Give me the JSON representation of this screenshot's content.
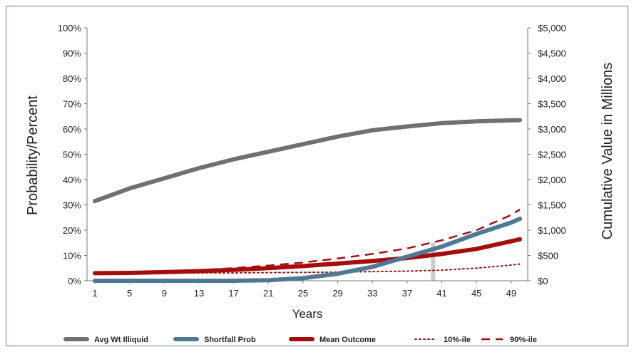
{
  "chart_data": {
    "type": "line",
    "xlabel": "Years",
    "ylabel_left": "Probability/Percent",
    "ylabel_right": "Cumulative Value in Millions",
    "x_ticks": [
      "1",
      "5",
      "9",
      "13",
      "17",
      "21",
      "25",
      "29",
      "33",
      "37",
      "41",
      "45",
      "49"
    ],
    "y_left_ticks": [
      "0%",
      "10%",
      "20%",
      "30%",
      "40%",
      "50%",
      "60%",
      "70%",
      "80%",
      "90%",
      "100%"
    ],
    "y_right_ticks": [
      "$0",
      "$500",
      "$1,000",
      "$1,500",
      "$2,000",
      "$2,500",
      "$3,000",
      "$3,500",
      "$4,000",
      "$4,500",
      "$5,000"
    ],
    "ylim_left": [
      0,
      100
    ],
    "ylim_right": [
      0,
      5000
    ],
    "xlim": [
      1,
      50
    ],
    "grid": false,
    "legend_position": "bottom",
    "series": [
      {
        "name": "Avg Wt Illiquid",
        "axis": "left",
        "color": "#707070",
        "style": "solid-thick",
        "x": [
          1,
          5,
          9,
          13,
          17,
          21,
          25,
          29,
          33,
          37,
          41,
          45,
          49,
          50
        ],
        "values": [
          31.5,
          36.5,
          40.5,
          44.5,
          48,
          51,
          54,
          57,
          59.5,
          61,
          62.3,
          63,
          63.4,
          63.5
        ]
      },
      {
        "name": "Shortfall Prob",
        "axis": "left",
        "color": "#4f7894",
        "style": "solid-thick",
        "x": [
          1,
          5,
          9,
          13,
          17,
          21,
          25,
          29,
          33,
          37,
          41,
          45,
          49,
          50
        ],
        "values": [
          0,
          0,
          0,
          0,
          0,
          0.2,
          1,
          2.8,
          5.5,
          9.5,
          13.5,
          18.5,
          23,
          24.5
        ]
      },
      {
        "name": "Mean Outcome",
        "axis": "right",
        "color": "#a50d0d",
        "style": "solid-thick",
        "x": [
          1,
          5,
          9,
          13,
          17,
          21,
          25,
          29,
          33,
          37,
          41,
          45,
          49,
          50
        ],
        "values": [
          150,
          155,
          170,
          190,
          215,
          250,
          290,
          340,
          390,
          450,
          530,
          630,
          780,
          820
        ]
      },
      {
        "name": "10%-ile",
        "axis": "right",
        "color": "#a50d0d",
        "style": "dotted",
        "x": [
          1,
          5,
          9,
          13,
          17,
          21,
          25,
          29,
          33,
          37,
          41,
          45,
          49,
          50
        ],
        "values": [
          150,
          150,
          150,
          155,
          155,
          160,
          165,
          170,
          180,
          190,
          210,
          250,
          310,
          330
        ]
      },
      {
        "name": "90%-ile",
        "axis": "right",
        "color": "#a50d0d",
        "style": "dashed",
        "x": [
          1,
          5,
          9,
          13,
          17,
          21,
          25,
          29,
          33,
          37,
          41,
          45,
          49,
          50
        ],
        "values": [
          150,
          160,
          180,
          210,
          250,
          300,
          360,
          440,
          530,
          640,
          800,
          1000,
          1300,
          1410
        ]
      }
    ],
    "marker_bar": {
      "x": 40,
      "color": "#cccccc"
    }
  }
}
